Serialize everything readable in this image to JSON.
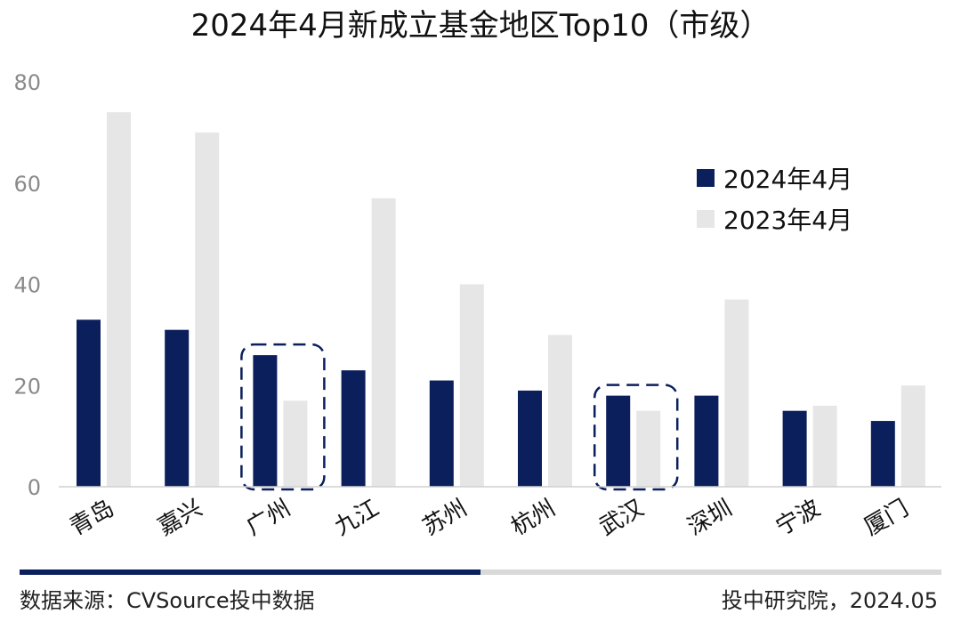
{
  "chart_data": {
    "type": "bar",
    "title": "2024年4月新成立基金地区Top10（市级）",
    "categories": [
      "青岛",
      "嘉兴",
      "广州",
      "九江",
      "苏州",
      "杭州",
      "武汉",
      "深圳",
      "宁波",
      "厦门"
    ],
    "series": [
      {
        "name": "2024年4月",
        "color": "#0b1f5c",
        "values": [
          33,
          31,
          26,
          23,
          21,
          19,
          18,
          18,
          15,
          13
        ]
      },
      {
        "name": "2023年4月",
        "color": "#e6e6e6",
        "values": [
          74,
          70,
          17,
          57,
          40,
          30,
          15,
          37,
          16,
          20
        ]
      }
    ],
    "ylim": [
      0,
      80
    ],
    "yticks": [
      0,
      20,
      40,
      60,
      80
    ],
    "grid": false,
    "legend_position": "top-right",
    "highlighted_categories": [
      "广州",
      "武汉"
    ],
    "highlight_color": "#0b1f5c"
  },
  "footer": {
    "source": "数据来源：CVSource投中数据",
    "org": "投中研究院，2024.05"
  }
}
